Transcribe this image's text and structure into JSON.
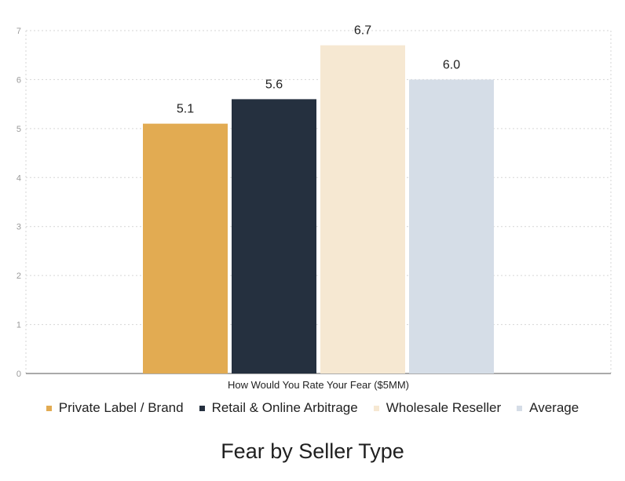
{
  "chart_data": {
    "type": "bar",
    "title": "Fear by Seller Type",
    "categories": [
      "How Would You Rate Your Fear ($5MM)"
    ],
    "series": [
      {
        "name": "Private Label / Brand",
        "values": [
          5.1
        ],
        "label": "5.1",
        "color": "#e2ab52"
      },
      {
        "name": "Retail & Online Arbitrage",
        "values": [
          5.6
        ],
        "label": "5.6",
        "color": "#25303f"
      },
      {
        "name": "Wholesale Reseller",
        "values": [
          6.7
        ],
        "label": "6.7",
        "color": "#f6e8d2"
      },
      {
        "name": "Average",
        "values": [
          6.0
        ],
        "label": "6.0",
        "color": "#d5dde7"
      }
    ],
    "ylim": [
      0,
      7
    ],
    "yticks": [
      "0",
      "1",
      "2",
      "3",
      "4",
      "5",
      "6",
      "7"
    ],
    "grid": true,
    "legend_position": "bottom"
  }
}
